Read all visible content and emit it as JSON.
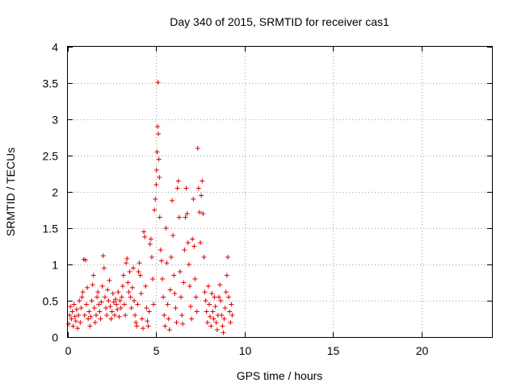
{
  "chart_data": {
    "type": "scatter",
    "title": "Day 340 of 2015, SRMTID for receiver cas1",
    "xlabel": "GPS time / hours",
    "ylabel": "SRMTID / TECUs",
    "xlim": [
      0,
      24
    ],
    "ylim": [
      0,
      4
    ],
    "xticks": [
      0,
      5,
      10,
      15,
      20
    ],
    "yticks": [
      0,
      0.5,
      1,
      1.5,
      2,
      2.5,
      3,
      3.5,
      4
    ],
    "xtick_labels": [
      "0",
      "5",
      "10",
      "15",
      "20"
    ],
    "ytick_labels": [
      "0",
      "0.5",
      "1",
      "1.5",
      "2",
      "2.5",
      "3",
      "3.5",
      "4"
    ],
    "grid": true,
    "marker": "+",
    "color": "#e00000",
    "series": [
      {
        "name": "cas1",
        "points": [
          [
            0.05,
            0.18
          ],
          [
            0.1,
            0.3
          ],
          [
            0.15,
            0.42
          ],
          [
            0.2,
            0.25
          ],
          [
            0.25,
            0.35
          ],
          [
            0.3,
            0.15
          ],
          [
            0.35,
            0.45
          ],
          [
            0.4,
            0.28
          ],
          [
            0.45,
            0.22
          ],
          [
            0.5,
            0.38
          ],
          [
            0.55,
            0.12
          ],
          [
            0.6,
            0.3
          ],
          [
            0.65,
            0.5
          ],
          [
            0.7,
            0.2
          ],
          [
            0.75,
            0.4
          ],
          [
            0.8,
            0.55
          ],
          [
            0.85,
            0.62
          ],
          [
            0.9,
            1.07
          ],
          [
            0.95,
            0.3
          ],
          [
            1.0,
            1.06
          ],
          [
            1.05,
            0.45
          ],
          [
            1.1,
            0.68
          ],
          [
            1.15,
            0.25
          ],
          [
            1.2,
            0.35
          ],
          [
            1.25,
            0.15
          ],
          [
            1.3,
            0.28
          ],
          [
            1.35,
            0.5
          ],
          [
            1.4,
            0.72
          ],
          [
            1.45,
            0.85
          ],
          [
            1.5,
            0.4
          ],
          [
            1.55,
            0.2
          ],
          [
            1.6,
            0.3
          ],
          [
            1.65,
            0.55
          ],
          [
            1.7,
            0.62
          ],
          [
            1.75,
            0.45
          ],
          [
            1.8,
            0.35
          ],
          [
            1.85,
            0.25
          ],
          [
            1.9,
            0.48
          ],
          [
            1.95,
            0.7
          ],
          [
            2.0,
            1.12
          ],
          [
            2.05,
            0.95
          ],
          [
            2.1,
            0.55
          ],
          [
            2.15,
            0.4
          ],
          [
            2.2,
            0.3
          ],
          [
            2.25,
            0.65
          ],
          [
            2.3,
            0.5
          ],
          [
            2.35,
            0.78
          ],
          [
            2.4,
            0.42
          ],
          [
            2.45,
            0.25
          ],
          [
            2.5,
            0.35
          ],
          [
            2.55,
            0.6
          ],
          [
            2.6,
            0.48
          ],
          [
            2.65,
            0.3
          ],
          [
            2.7,
            0.52
          ],
          [
            2.75,
            0.45
          ],
          [
            2.8,
            0.38
          ],
          [
            2.85,
            0.62
          ],
          [
            2.9,
            0.28
          ],
          [
            2.95,
            0.5
          ],
          [
            3.0,
            0.4
          ],
          [
            3.05,
            0.55
          ],
          [
            3.1,
            0.7
          ],
          [
            3.15,
            0.85
          ],
          [
            3.2,
            0.45
          ],
          [
            3.25,
            0.3
          ],
          [
            3.3,
            1.02
          ],
          [
            3.35,
            1.08
          ],
          [
            3.4,
            0.75
          ],
          [
            3.45,
            0.62
          ],
          [
            3.5,
            0.9
          ],
          [
            3.55,
            0.55
          ],
          [
            3.6,
            0.4
          ],
          [
            3.65,
            0.68
          ],
          [
            3.7,
            0.95
          ],
          [
            3.75,
            0.5
          ],
          [
            3.8,
            0.3
          ],
          [
            3.85,
            0.2
          ],
          [
            3.9,
            0.15
          ],
          [
            3.95,
            0.45
          ],
          [
            4.0,
            0.9
          ],
          [
            4.05,
            1.02
          ],
          [
            4.1,
            0.85
          ],
          [
            4.15,
            0.6
          ],
          [
            4.2,
            0.25
          ],
          [
            4.25,
            0.12
          ],
          [
            4.3,
            1.45
          ],
          [
            4.35,
            1.38
          ],
          [
            4.4,
            0.7
          ],
          [
            4.45,
            0.4
          ],
          [
            4.5,
            0.22
          ],
          [
            4.55,
            0.15
          ],
          [
            4.6,
            0.35
          ],
          [
            4.65,
            1.28
          ],
          [
            4.7,
            1.35
          ],
          [
            4.75,
            1.1
          ],
          [
            4.8,
            0.8
          ],
          [
            4.85,
            0.45
          ],
          [
            4.9,
            1.75
          ],
          [
            4.95,
            1.9
          ],
          [
            5.0,
            2.1
          ],
          [
            5.02,
            2.3
          ],
          [
            5.05,
            2.55
          ],
          [
            5.08,
            2.9
          ],
          [
            5.1,
            3.51
          ],
          [
            5.12,
            2.8
          ],
          [
            5.15,
            2.45
          ],
          [
            5.18,
            2.2
          ],
          [
            5.2,
            1.65
          ],
          [
            5.25,
            1.2
          ],
          [
            5.3,
            1.05
          ],
          [
            5.35,
            0.8
          ],
          [
            5.4,
            0.55
          ],
          [
            5.45,
            0.3
          ],
          [
            5.5,
            0.15
          ],
          [
            5.55,
            1.5
          ],
          [
            5.6,
            1.02
          ],
          [
            5.65,
            0.45
          ],
          [
            5.7,
            0.25
          ],
          [
            5.75,
            0.1
          ],
          [
            5.8,
            0.65
          ],
          [
            5.85,
            1.1
          ],
          [
            5.9,
            1.88
          ],
          [
            5.95,
            1.4
          ],
          [
            6.0,
            0.85
          ],
          [
            6.05,
            0.6
          ],
          [
            6.1,
            0.4
          ],
          [
            6.15,
            0.2
          ],
          [
            6.2,
            2.05
          ],
          [
            6.25,
            2.15
          ],
          [
            6.3,
            1.65
          ],
          [
            6.35,
            0.9
          ],
          [
            6.4,
            0.55
          ],
          [
            6.45,
            0.3
          ],
          [
            6.5,
            0.18
          ],
          [
            6.55,
            0.75
          ],
          [
            6.6,
            1.2
          ],
          [
            6.65,
            1.65
          ],
          [
            6.7,
            2.05
          ],
          [
            6.75,
            1.7
          ],
          [
            6.8,
            1.3
          ],
          [
            6.85,
            1.0
          ],
          [
            6.9,
            0.7
          ],
          [
            6.95,
            0.42
          ],
          [
            7.0,
            0.25
          ],
          [
            7.05,
            1.35
          ],
          [
            7.1,
            1.9
          ],
          [
            7.15,
            1.25
          ],
          [
            7.2,
            0.8
          ],
          [
            7.25,
            0.55
          ],
          [
            7.3,
            0.35
          ],
          [
            7.35,
            2.6
          ],
          [
            7.4,
            2.05
          ],
          [
            7.45,
            1.72
          ],
          [
            7.5,
            1.3
          ],
          [
            7.55,
            1.95
          ],
          [
            7.6,
            2.15
          ],
          [
            7.65,
            1.7
          ],
          [
            7.7,
            1.1
          ],
          [
            7.75,
            0.62
          ],
          [
            7.8,
            0.5
          ],
          [
            7.85,
            0.35
          ],
          [
            7.9,
            0.2
          ],
          [
            7.95,
            0.7
          ],
          [
            8.0,
            0.45
          ],
          [
            8.05,
            0.28
          ],
          [
            8.1,
            0.15
          ],
          [
            8.15,
            0.6
          ],
          [
            8.2,
            0.35
          ],
          [
            8.25,
            0.25
          ],
          [
            8.3,
            0.55
          ],
          [
            8.35,
            0.42
          ],
          [
            8.4,
            0.2
          ],
          [
            8.45,
            0.1
          ],
          [
            8.5,
            0.3
          ],
          [
            8.55,
            0.55
          ],
          [
            8.6,
            0.72
          ],
          [
            8.65,
            0.5
          ],
          [
            8.7,
            0.3
          ],
          [
            8.75,
            0.15
          ],
          [
            8.8,
            0.06
          ],
          [
            8.85,
            0.25
          ],
          [
            8.9,
            0.4
          ],
          [
            8.95,
            0.62
          ],
          [
            9.0,
            0.85
          ],
          [
            9.05,
            1.1
          ],
          [
            9.1,
            0.55
          ],
          [
            9.15,
            0.35
          ],
          [
            9.2,
            0.2
          ],
          [
            9.25,
            0.45
          ],
          [
            9.3,
            0.3
          ]
        ]
      }
    ]
  }
}
